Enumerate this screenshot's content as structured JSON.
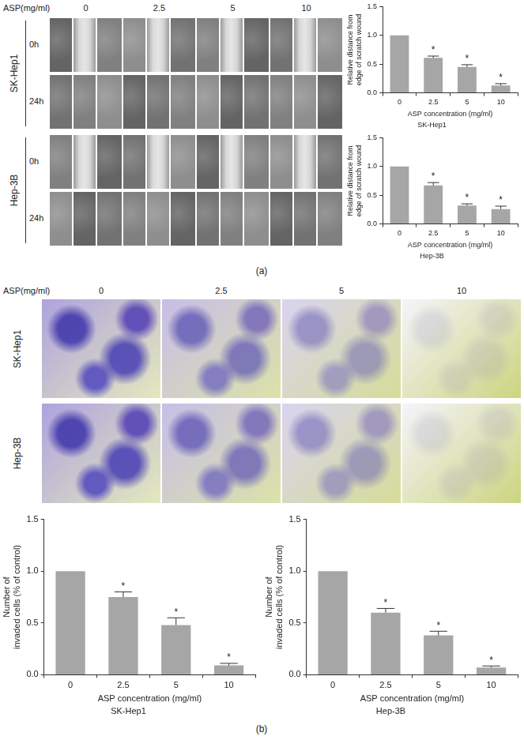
{
  "chart_data": [
    {
      "type": "bar",
      "title": "SK-Hep1",
      "xlabel": "ASP concentration (mg/ml)",
      "ylabel": [
        "Relative distance from",
        "edge of scratch wound"
      ],
      "categories": [
        "0",
        "2.5",
        "5",
        "10"
      ],
      "values": [
        1,
        0.61,
        0.45,
        0.13
      ],
      "errors": [
        0,
        0.03,
        0.04,
        0.03
      ],
      "significance": [
        null,
        "*",
        "*",
        "*"
      ],
      "color": "#a6a6a6",
      "ylim": [
        0,
        1.5
      ],
      "yticks": [
        {
          "value": 0,
          "label": "0.0"
        },
        {
          "value": 0.5,
          "label": "0.5"
        },
        {
          "value": 1,
          "label": "1.0"
        },
        {
          "value": 1.5,
          "label": "1.5"
        }
      ],
      "grid": false
    },
    {
      "type": "bar",
      "title": "Hep-3B",
      "xlabel": "ASP concentration (mg/ml)",
      "ylabel": [
        "Relative distance from",
        "edge of scratch wound"
      ],
      "categories": [
        "0",
        "2.5",
        "5",
        "10"
      ],
      "values": [
        1,
        0.67,
        0.32,
        0.26
      ],
      "errors": [
        0,
        0.05,
        0.03,
        0.05
      ],
      "significance": [
        null,
        "*",
        "*",
        "*"
      ],
      "color": "#a6a6a6",
      "ylim": [
        0,
        1.5
      ],
      "yticks": [
        {
          "value": 0,
          "label": "0.0"
        },
        {
          "value": 0.5,
          "label": "0.5"
        },
        {
          "value": 1,
          "label": "1.0"
        },
        {
          "value": 1.5,
          "label": "1.5"
        }
      ],
      "grid": false
    },
    {
      "type": "bar",
      "title": "SK-Hep1",
      "xlabel": "ASP concentration (mg/ml)",
      "ylabel": [
        "Number of",
        "invaded cells (% of control)"
      ],
      "categories": [
        "0",
        "2.5",
        "5",
        "10"
      ],
      "values": [
        1,
        0.75,
        0.48,
        0.09
      ],
      "errors": [
        0,
        0.05,
        0.07,
        0.02
      ],
      "significance": [
        null,
        "*",
        "*",
        "*"
      ],
      "color": "#a6a6a6",
      "ylim": [
        0,
        1.5
      ],
      "yticks": [
        {
          "value": 0,
          "label": "0.0"
        },
        {
          "value": 0.5,
          "label": "0.5"
        },
        {
          "value": 1,
          "label": "1.0"
        },
        {
          "value": 1.5,
          "label": "1.5"
        }
      ],
      "grid": false
    },
    {
      "type": "bar",
      "title": "Hep-3B",
      "xlabel": "ASP concentration (mg/ml)",
      "ylabel": [
        "Number of",
        "invaded cells (% of control)"
      ],
      "categories": [
        "0",
        "2.5",
        "5",
        "10"
      ],
      "values": [
        1,
        0.6,
        0.38,
        0.07
      ],
      "errors": [
        0,
        0.04,
        0.04,
        0.015
      ],
      "significance": [
        null,
        "*",
        "*",
        "*"
      ],
      "color": "#a6a6a6",
      "ylim": [
        0,
        1.5
      ],
      "yticks": [
        {
          "value": 0,
          "label": "0.0"
        },
        {
          "value": 0.5,
          "label": "0.5"
        },
        {
          "value": 1,
          "label": "1.0"
        },
        {
          "value": 1.5,
          "label": "1.5"
        }
      ],
      "grid": false
    }
  ],
  "figure": {
    "panel_labels": [
      "(a)",
      "(b)"
    ],
    "a": {
      "header": "ASP(mg/ml)",
      "columns": [
        "0",
        "2.5",
        "5",
        "10"
      ],
      "rows": [
        "SK-Hep1",
        "Hep-3B"
      ],
      "times": [
        "0h",
        "24h"
      ]
    },
    "b": {
      "header": "ASP(mg/ml)",
      "columns": [
        "0",
        "2.5",
        "5",
        "10"
      ],
      "rows": [
        "SK-Hep1",
        "Hep-3B"
      ]
    }
  }
}
